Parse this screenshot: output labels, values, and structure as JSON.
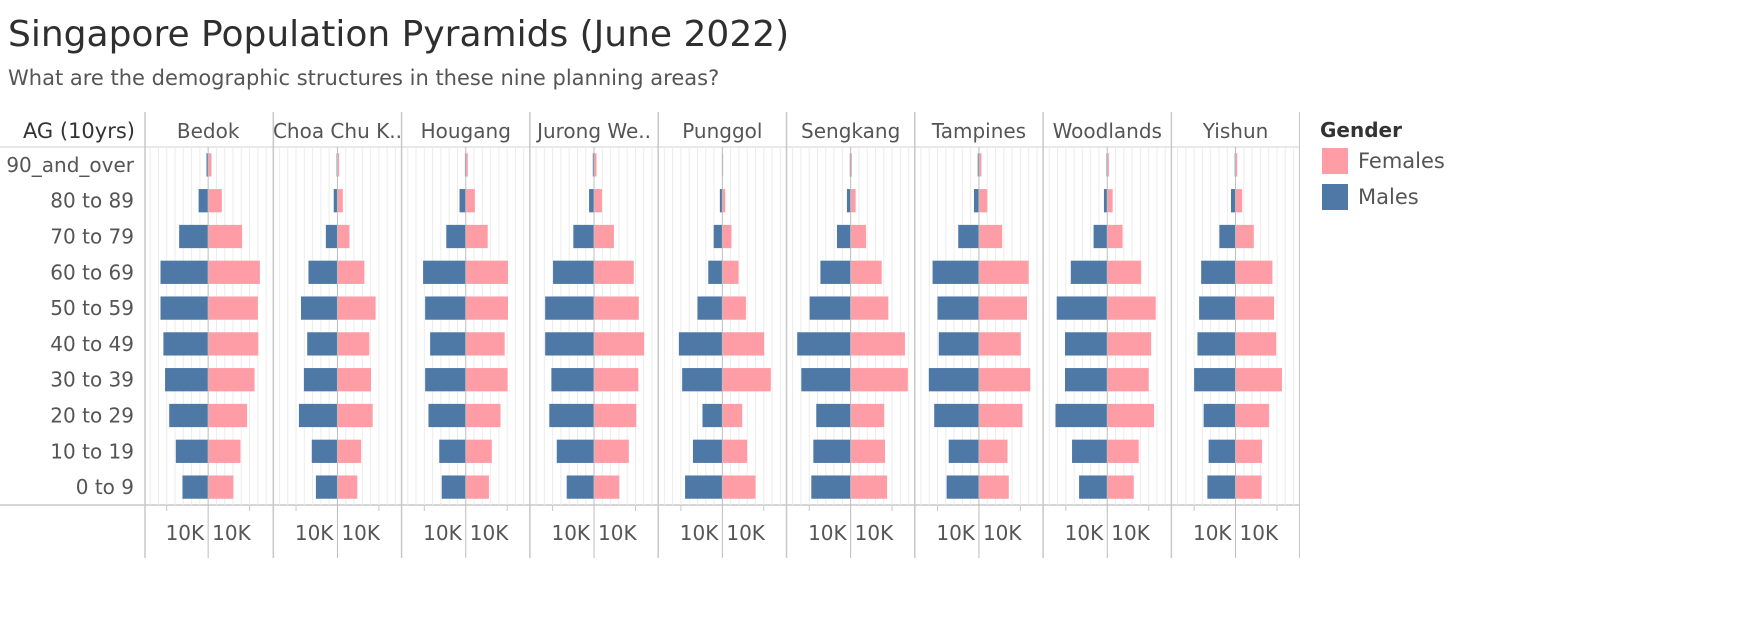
{
  "title": "Singapore Population Pyramids (June 2022)",
  "subtitle": "What are the demographic structures in these nine planning areas?",
  "colors": {
    "females": "#ff9da7",
    "males": "#4e79a7"
  },
  "legend": {
    "title": "Gender",
    "items": [
      {
        "label": "Females",
        "color": "#ff9da7"
      },
      {
        "label": "Males",
        "color": "#4e79a7"
      }
    ]
  },
  "chart_data": {
    "type": "bar",
    "row_header": "AG (10yrs)",
    "categories": [
      "90_and_over",
      "80 to 89",
      "70 to 79",
      "60 to 69",
      "50 to 59",
      "40 to 49",
      "30 to 39",
      "20 to 29",
      "10 to 19",
      "0 to 9"
    ],
    "axis_tick_label": "10K",
    "xlim_each_side": [
      0,
      14000
    ],
    "grid": true,
    "legend_position": "right",
    "panels": [
      {
        "name": "Bedok",
        "males": [
          400,
          2300,
          7000,
          11500,
          11500,
          10800,
          10400,
          9400,
          7800,
          6200
        ],
        "females": [
          800,
          3300,
          8200,
          12500,
          12000,
          12100,
          11200,
          9400,
          7800,
          6100
        ]
      },
      {
        "name": "Choa Chu K..",
        "males": [
          200,
          900,
          2800,
          7000,
          8800,
          7300,
          8100,
          9300,
          6200,
          5200
        ],
        "females": [
          400,
          1300,
          2900,
          6500,
          9200,
          7700,
          8100,
          8500,
          5700,
          4800
        ]
      },
      {
        "name": "Hougang",
        "males": [
          200,
          1500,
          4700,
          10300,
          9800,
          8600,
          9800,
          9000,
          6400,
          5800
        ],
        "females": [
          500,
          2200,
          5300,
          10200,
          10200,
          9400,
          10100,
          8400,
          6300,
          5600
        ]
      },
      {
        "name": "Jurong We..",
        "males": [
          300,
          1200,
          5000,
          9900,
          11800,
          11800,
          10300,
          10800,
          9000,
          6600
        ],
        "females": [
          600,
          1900,
          4800,
          9600,
          10800,
          12100,
          10700,
          10200,
          8400,
          6100
        ]
      },
      {
        "name": "Punggol",
        "males": [
          100,
          600,
          2100,
          3400,
          6000,
          10500,
          9700,
          4800,
          7100,
          9000
        ],
        "females": [
          200,
          700,
          2200,
          3900,
          5700,
          10100,
          11700,
          4800,
          6000,
          8000
        ]
      },
      {
        "name": "Sengkang",
        "males": [
          200,
          900,
          3300,
          7300,
          9900,
          12900,
          11900,
          8300,
          9000,
          9500
        ],
        "females": [
          300,
          1200,
          3700,
          7500,
          9100,
          13100,
          13800,
          8100,
          8300,
          8800
        ]
      },
      {
        "name": "Tampines",
        "males": [
          300,
          1200,
          5000,
          11200,
          10000,
          9700,
          12100,
          10800,
          7300,
          7800
        ],
        "females": [
          600,
          2000,
          5600,
          12000,
          11600,
          10100,
          12400,
          10500,
          6900,
          7200
        ]
      },
      {
        "name": "Woodlands",
        "males": [
          200,
          800,
          3300,
          8800,
          12200,
          10200,
          10200,
          12500,
          8500,
          6800
        ],
        "females": [
          400,
          1300,
          3700,
          8200,
          11700,
          10600,
          10000,
          11300,
          7600,
          6400
        ]
      },
      {
        "name": "Yishun",
        "males": [
          200,
          1100,
          3900,
          8300,
          8800,
          9200,
          10000,
          7700,
          6500,
          6800
        ],
        "females": [
          400,
          1600,
          4400,
          8900,
          9300,
          9800,
          11200,
          8100,
          6400,
          6300
        ]
      }
    ]
  }
}
